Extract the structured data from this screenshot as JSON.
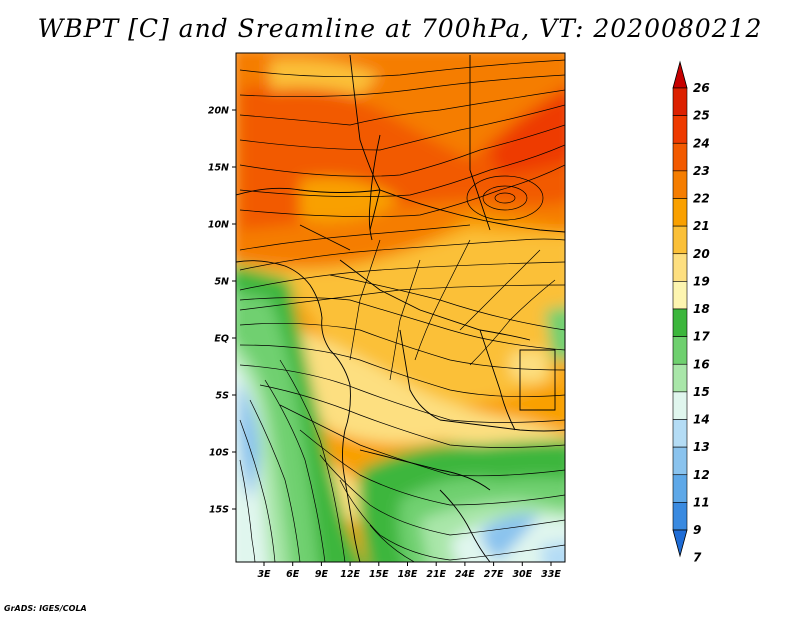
{
  "title": "WBPT [C] and Sreamline at 700hPa, VT: 2020080212",
  "credit": "GrADS: IGES/COLA",
  "lat_labels": [
    "20N",
    "15N",
    "10N",
    "5N",
    "EQ",
    "5S",
    "10S",
    "15S"
  ],
  "lon_labels": [
    "3E",
    "6E",
    "9E",
    "12E",
    "15E",
    "18E",
    "21E",
    "24E",
    "27E",
    "30E",
    "33E"
  ],
  "colorbar": {
    "levels": [
      "26",
      "25",
      "24",
      "23",
      "22",
      "21",
      "20",
      "19",
      "18",
      "17",
      "16",
      "15",
      "14",
      "13",
      "12",
      "11",
      "9",
      "7"
    ],
    "colors": [
      "#c60000",
      "#dc2000",
      "#ee3a00",
      "#f25a00",
      "#f57d00",
      "#f9a000",
      "#fbc038",
      "#fddf80",
      "#fdf5b0",
      "#3cb63c",
      "#6fd06f",
      "#a9e6a9",
      "#e0f6ee",
      "#b4dcf5",
      "#8ac3ee",
      "#5ea8e8",
      "#3a8ae0",
      "#1e6cd6"
    ]
  }
}
